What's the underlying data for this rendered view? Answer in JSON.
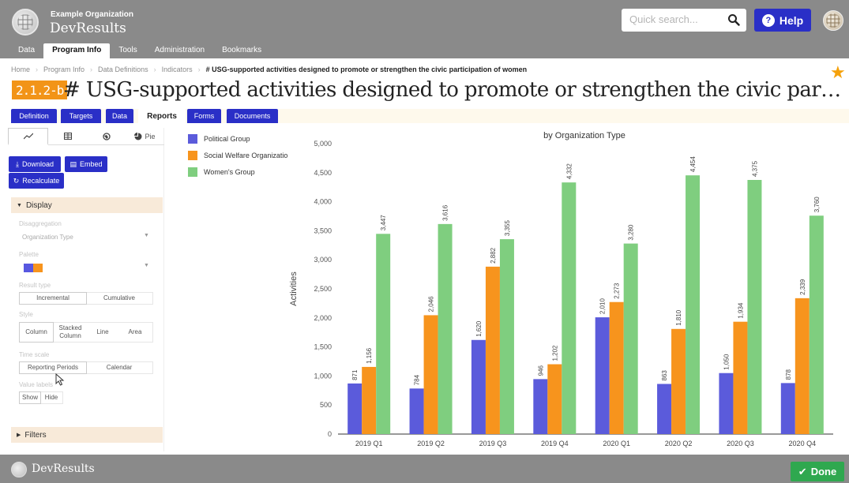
{
  "header": {
    "org_name": "Example Organization",
    "app_name": "DevResults",
    "search_placeholder": "Quick search...",
    "help_label": "Help"
  },
  "nav": {
    "items": [
      "Data",
      "Program Info",
      "Tools",
      "Administration",
      "Bookmarks"
    ],
    "active": "Program Info"
  },
  "breadcrumb": [
    "Home",
    "Program Info",
    "Data Definitions",
    "Indicators",
    "# USG-supported activities designed to promote or strengthen the civic participation of women"
  ],
  "indicator": {
    "code": "2.1.2-b",
    "title": "# USG-supported activities designed to promote or strengthen the civic participation of ..."
  },
  "tabs": [
    "Definition",
    "Targets",
    "Data",
    "Reports",
    "Forms",
    "Documents"
  ],
  "active_tab": "Reports",
  "sidebar": {
    "chart_types": [
      {
        "icon": "line-chart-icon",
        "label": ""
      },
      {
        "icon": "table-icon",
        "label": ""
      },
      {
        "icon": "map-icon",
        "label": ""
      },
      {
        "icon": "pie-chart-icon",
        "label": "Pie"
      }
    ],
    "download_label": "Download",
    "embed_label": "Embed",
    "recalculate_label": "Recalculate",
    "display_heading": "Display",
    "disaggregation_label": "Disaggregation",
    "disaggregation_value": "Organization Type",
    "palette_label": "Palette",
    "palette_colors": [
      "#5858e0",
      "#f7941d"
    ],
    "result_type_label": "Result type",
    "result_type_options": [
      "Incremental",
      "Cumulative"
    ],
    "style_label": "Style",
    "style_options": [
      "Column",
      "Stacked Column",
      "Line",
      "Area"
    ],
    "time_scale_label": "Time scale",
    "time_scale_options": [
      "Reporting Periods",
      "Calendar"
    ],
    "value_labels_label": "Value labels",
    "value_labels_options": [
      "Show",
      "Hide"
    ],
    "filters_heading": "Filters"
  },
  "footer": {
    "app_name": "DevResults",
    "done_label": "Done"
  },
  "chart_data": {
    "type": "bar",
    "title": "by Organization Type",
    "ylabel": "Activities",
    "xlabel": "",
    "ylim": [
      0,
      5000
    ],
    "yticks": [
      "0",
      "500",
      "1,000",
      "1,500",
      "2,000",
      "2,500",
      "3,000",
      "3,500",
      "4,000",
      "4,500",
      "5,000"
    ],
    "categories": [
      "2019 Q1",
      "2019 Q2",
      "2019 Q3",
      "2019 Q4",
      "2020 Q1",
      "2020 Q2",
      "2020 Q3",
      "2020 Q4"
    ],
    "series": [
      {
        "name": "Political Group",
        "color": "#5b5bdb",
        "values": [
          871,
          784,
          1620,
          946,
          2010,
          863,
          1050,
          878
        ],
        "labels": [
          "871",
          "784",
          "1,620",
          "946",
          "2,010",
          "863",
          "1,050",
          "878"
        ]
      },
      {
        "name": "Social Welfare Organizatio",
        "color": "#f7941d",
        "values": [
          1156,
          2046,
          2882,
          1202,
          2273,
          1810,
          1934,
          2339
        ],
        "labels": [
          "1,156",
          "2,046",
          "2,882",
          "1,202",
          "2,273",
          "1,810",
          "1,934",
          "2,339"
        ]
      },
      {
        "name": "Women's Group",
        "color": "#7fce7f",
        "values": [
          3447,
          3616,
          3355,
          4332,
          3280,
          4454,
          4375,
          3760
        ],
        "labels": [
          "3,447",
          "3,616",
          "3,355",
          "4,332",
          "3,280",
          "4,454",
          "4,375",
          "3,760"
        ]
      }
    ],
    "legend_position": "top-left"
  }
}
